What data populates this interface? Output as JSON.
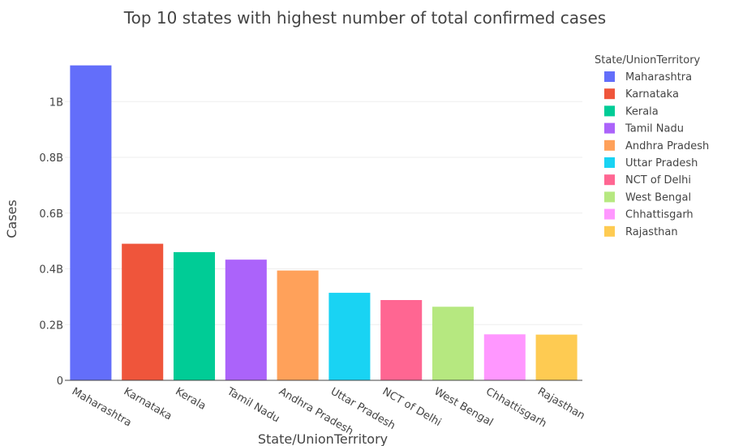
{
  "chart_data": {
    "type": "bar",
    "title": "Top 10 states with highest number of total confirmed cases",
    "xlabel": "State/UnionTerritory",
    "ylabel": "Cases",
    "categories": [
      "Maharashtra",
      "Karnataka",
      "Kerala",
      "Tamil Nadu",
      "Andhra Pradesh",
      "Uttar Pradesh",
      "NCT of Delhi",
      "West Bengal",
      "Chhattisgarh",
      "Rajasthan"
    ],
    "values": [
      1130000000,
      490000000,
      460000000,
      433000000,
      394000000,
      314000000,
      288000000,
      264000000,
      165000000,
      164000000
    ],
    "colors": [
      "#636EFA",
      "#EF553B",
      "#00CC96",
      "#AB63FA",
      "#FFA15A",
      "#19D3F3",
      "#FF6692",
      "#B6E880",
      "#FF97FF",
      "#FECB52"
    ],
    "ylim": [
      0,
      1190000000
    ],
    "yticks": [
      0,
      200000000,
      400000000,
      600000000,
      800000000,
      1000000000
    ],
    "ytick_labels": [
      "0",
      "0.2B",
      "0.4B",
      "0.6B",
      "0.8B",
      "1B"
    ],
    "grid": true,
    "legend": {
      "title": "State/UnionTerritory",
      "placement": "right",
      "entries": [
        "Maharashtra",
        "Karnataka",
        "Kerala",
        "Tamil Nadu",
        "Andhra Pradesh",
        "Uttar Pradesh",
        "NCT of Delhi",
        "West Bengal",
        "Chhattisgarh",
        "Rajasthan"
      ]
    }
  }
}
